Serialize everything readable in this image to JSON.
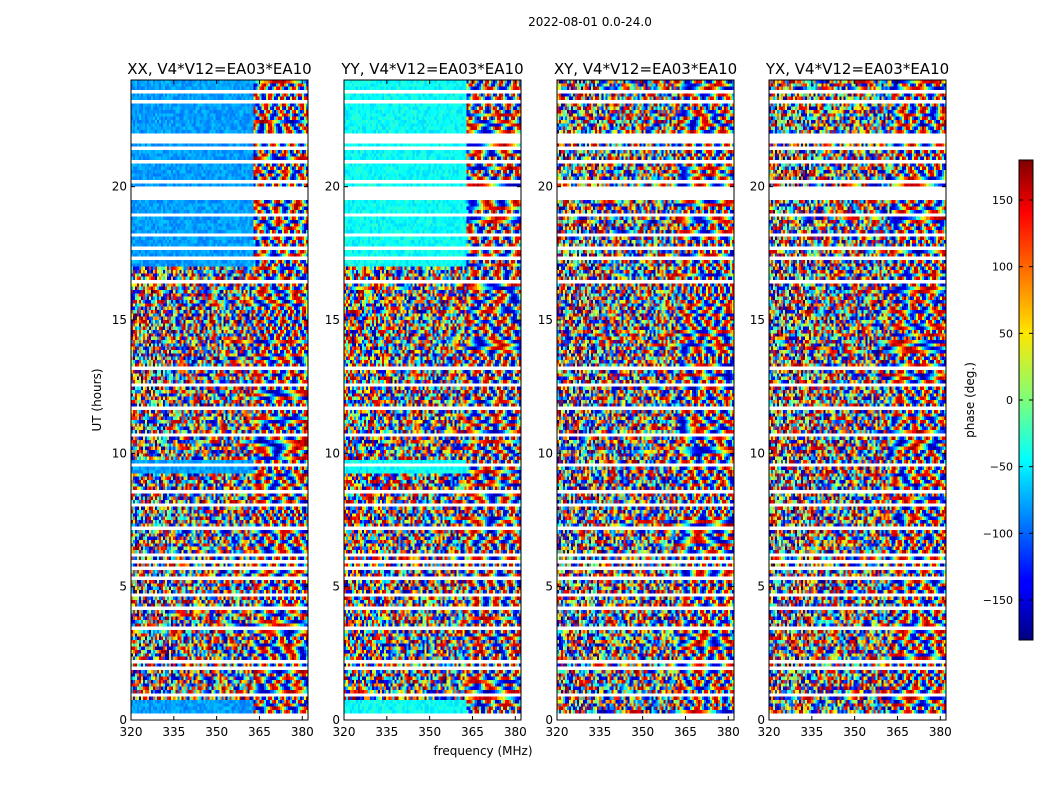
{
  "chart_data": {
    "type": "heatmap",
    "suptitle": "2022-08-01 0.0-24.0",
    "panels": [
      {
        "title": "XX, V4*V12=EA03*EA10",
        "correlation": "XX"
      },
      {
        "title": "YY, V4*V12=EA03*EA10",
        "correlation": "YY"
      },
      {
        "title": "XY, V4*V12=EA03*EA10",
        "correlation": "XY"
      },
      {
        "title": "YX, V4*V12=EA03*EA10",
        "correlation": "YX"
      }
    ],
    "xlabel": "frequency (MHz)",
    "ylabel": "UT (hours)",
    "xlim": [
      320,
      382
    ],
    "ylim": [
      0,
      24
    ],
    "xticks": [
      320,
      335,
      350,
      365,
      380
    ],
    "yticks": [
      0,
      5,
      10,
      15,
      20
    ],
    "colorbar": {
      "label": "phase (deg.)",
      "range": [
        -180,
        180
      ],
      "ticks": [
        -150,
        -100,
        -50,
        0,
        50,
        100,
        150
      ],
      "tick_labels": [
        "−150",
        "−100",
        "−50",
        "0",
        "50",
        "100",
        "150"
      ],
      "colormap": "jet"
    },
    "flagged_rows_hours": [
      0.15,
      0.3,
      1.0,
      2.0,
      2.2,
      3.5,
      4.2,
      4.7,
      5.4,
      5.7,
      6.0,
      6.2,
      7.3,
      8.1,
      8.6,
      9.6,
      10.8,
      11.7,
      12.6,
      13.2,
      16.5,
      17.4,
      17.7,
      18.2,
      19.0,
      19.7,
      20.0,
      20.3,
      21.0,
      21.5,
      23.2,
      23.6
    ],
    "flagged_bands_hours": [
      [
        19.55,
        19.85
      ],
      [
        21.6,
        22.0
      ]
    ],
    "lower_band_edge_mhz": 363
  }
}
